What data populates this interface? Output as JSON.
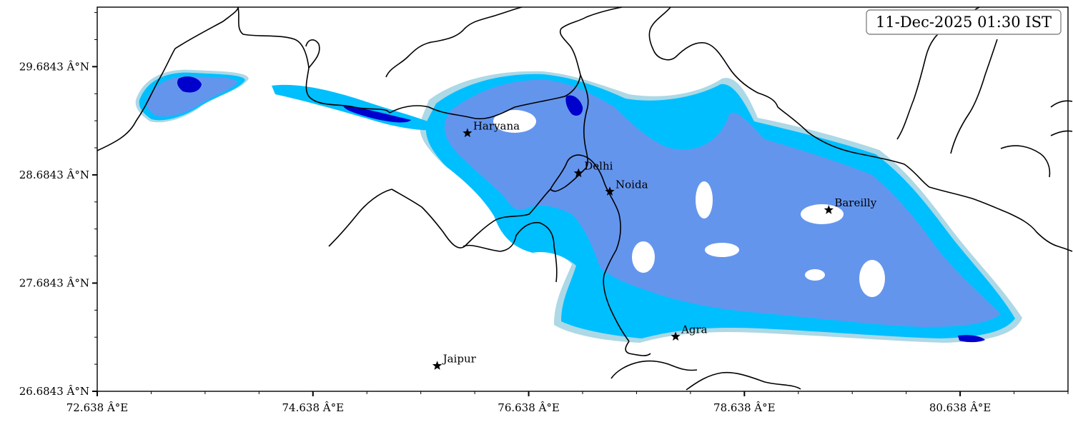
{
  "timestamp": "11-Dec-2025 01:30 IST",
  "map": {
    "lon_range": [
      72.638,
      81.638
    ],
    "lat_range": [
      26.6843,
      30.2343
    ],
    "x_ticks": [
      {
        "value": 72.638,
        "label": "72.638 Â°E"
      },
      {
        "value": 74.638,
        "label": "74.638 Â°E"
      },
      {
        "value": 76.638,
        "label": "76.638 Â°E"
      },
      {
        "value": 78.638,
        "label": "78.638 Â°E"
      },
      {
        "value": 80.638,
        "label": "80.638 Â°E"
      }
    ],
    "y_ticks": [
      {
        "value": 29.6843,
        "label": "29.6843 Â°N"
      },
      {
        "value": 28.6843,
        "label": "28.6843 Â°N"
      },
      {
        "value": 27.6843,
        "label": "27.6843 Â°N"
      },
      {
        "value": 26.6843,
        "label": "26.6843 Â°N"
      }
    ],
    "shading_colors": [
      "#add8e6",
      "#00bfff",
      "#6495ed",
      "#0000cd"
    ],
    "cities": [
      {
        "name": "Haryana",
        "lon": 76.07,
        "lat": 29.07
      },
      {
        "name": "Delhi",
        "lon": 77.1,
        "lat": 28.7
      },
      {
        "name": "Noida",
        "lon": 77.39,
        "lat": 28.53
      },
      {
        "name": "Bareilly",
        "lon": 79.42,
        "lat": 28.36
      },
      {
        "name": "Agra",
        "lon": 78.0,
        "lat": 27.19
      },
      {
        "name": "Jaipur",
        "lon": 75.79,
        "lat": 26.92
      }
    ]
  }
}
